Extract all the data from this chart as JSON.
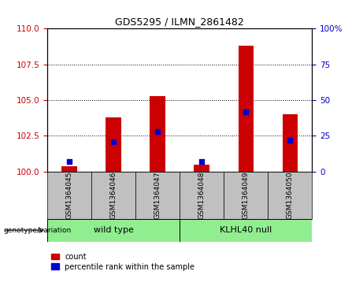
{
  "title": "GDS5295 / ILMN_2861482",
  "categories": [
    "GSM1364045",
    "GSM1364046",
    "GSM1364047",
    "GSM1364048",
    "GSM1364049",
    "GSM1364050"
  ],
  "count_values": [
    100.4,
    103.8,
    105.3,
    100.5,
    108.8,
    104.0
  ],
  "percentile_values": [
    7,
    21,
    28,
    7,
    42,
    22
  ],
  "ylim_left": [
    100,
    110
  ],
  "ylim_right": [
    0,
    100
  ],
  "yticks_left": [
    100,
    102.5,
    105,
    107.5,
    110
  ],
  "yticks_right": [
    0,
    25,
    50,
    75,
    100
  ],
  "group1_label": "wild type",
  "group2_label": "KLHL40 null",
  "group1_indices": [
    0,
    1,
    2
  ],
  "group2_indices": [
    3,
    4,
    5
  ],
  "group_color": "#90EE90",
  "bar_color": "#CC0000",
  "dot_color": "#0000CC",
  "left_tick_color": "#CC0000",
  "right_tick_color": "#0000CC",
  "background_plot": "#FFFFFF",
  "background_xtick": "#C0C0C0",
  "legend_labels": [
    "count",
    "percentile rank within the sample"
  ],
  "bar_width": 0.35,
  "dot_size": 25
}
